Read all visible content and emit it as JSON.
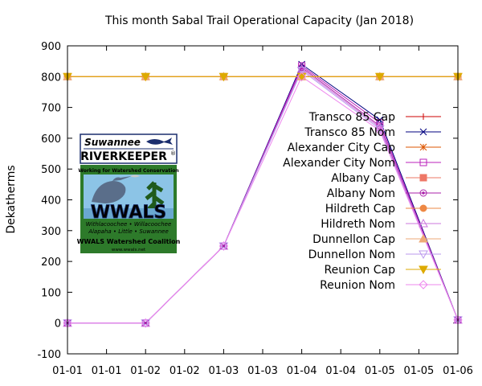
{
  "chart_data": {
    "type": "line",
    "title": "This month Sabal Trail Operational Capacity (Jan 2018)",
    "xlabel": "",
    "ylabel": "Dekatherms",
    "xlim": [
      0,
      5
    ],
    "ylim": [
      -100,
      900
    ],
    "y_ticks": [
      -100,
      0,
      100,
      200,
      300,
      400,
      500,
      600,
      700,
      800,
      900
    ],
    "x_ticks": [
      {
        "value": 0,
        "label": "01-01"
      },
      {
        "value": 0.5,
        "label": "01-01"
      },
      {
        "value": 1,
        "label": "01-02"
      },
      {
        "value": 1.5,
        "label": "01-02"
      },
      {
        "value": 2,
        "label": "01-03"
      },
      {
        "value": 2.5,
        "label": "01-03"
      },
      {
        "value": 3,
        "label": "01-04"
      },
      {
        "value": 3.5,
        "label": "01-04"
      },
      {
        "value": 4,
        "label": "01-05"
      },
      {
        "value": 4.5,
        "label": "01-05"
      },
      {
        "value": 5,
        "label": "01-06"
      }
    ],
    "grid": false,
    "legend_position": "right",
    "series": [
      {
        "name": "Transco 85 Cap",
        "color": "#cc0000",
        "marker": "plus",
        "x": [
          0,
          1,
          2,
          3,
          4,
          5
        ],
        "y": [
          800,
          800,
          800,
          800,
          800,
          800
        ]
      },
      {
        "name": "Transco 85 Nom",
        "color": "#00007f",
        "marker": "cross",
        "x": [
          0,
          1,
          2,
          3,
          4,
          5
        ],
        "y": [
          0,
          0,
          250,
          840,
          660,
          10
        ]
      },
      {
        "name": "Alexander City Cap",
        "color": "#dd5500",
        "marker": "asterisk",
        "x": [
          0,
          1,
          2,
          3,
          4,
          5
        ],
        "y": [
          800,
          800,
          800,
          800,
          800,
          800
        ]
      },
      {
        "name": "Alexander City Nom",
        "color": "#bb22bb",
        "marker": "square-open",
        "x": [
          0,
          1,
          2,
          3,
          4,
          5
        ],
        "y": [
          0,
          0,
          250,
          835,
          650,
          10
        ]
      },
      {
        "name": "Albany Cap",
        "color": "#ee7766",
        "marker": "square",
        "x": [
          0,
          1,
          2,
          3,
          4,
          5
        ],
        "y": [
          800,
          800,
          800,
          800,
          800,
          800
        ]
      },
      {
        "name": "Albany Nom",
        "color": "#aa22aa",
        "marker": "circle-dot",
        "x": [
          0,
          1,
          2,
          3,
          4,
          5
        ],
        "y": [
          0,
          0,
          250,
          830,
          640,
          10
        ]
      },
      {
        "name": "Hildreth Cap",
        "color": "#ee8844",
        "marker": "circle",
        "x": [
          0,
          1,
          2,
          3,
          4,
          5
        ],
        "y": [
          800,
          800,
          800,
          800,
          800,
          800
        ]
      },
      {
        "name": "Hildreth Nom",
        "color": "#cc77dd",
        "marker": "triangle-open",
        "x": [
          0,
          1,
          2,
          3,
          4,
          5
        ],
        "y": [
          0,
          0,
          250,
          825,
          635,
          10
        ]
      },
      {
        "name": "Dunnellon Cap",
        "color": "#eeaa77",
        "marker": "triangle",
        "x": [
          0,
          1,
          2,
          3,
          4,
          5
        ],
        "y": [
          800,
          800,
          800,
          800,
          800,
          800
        ]
      },
      {
        "name": "Dunnellon Nom",
        "color": "#bb99ee",
        "marker": "triangle-down-open",
        "x": [
          0,
          1,
          2,
          3,
          4,
          5
        ],
        "y": [
          0,
          0,
          250,
          820,
          630,
          10
        ]
      },
      {
        "name": "Reunion Cap",
        "color": "#ddaa00",
        "marker": "triangle-down",
        "x": [
          0,
          1,
          2,
          3,
          4,
          5
        ],
        "y": [
          800,
          800,
          800,
          800,
          800,
          800
        ]
      },
      {
        "name": "Reunion Nom",
        "color": "#ee88ee",
        "marker": "diamond-open",
        "x": [
          0,
          1,
          2,
          3,
          4,
          5
        ],
        "y": [
          0,
          0,
          250,
          800,
          625,
          10
        ]
      }
    ]
  },
  "logo": {
    "org_name": "Suwannee",
    "org_name_2": "RIVERKEEPER",
    "mark": "®",
    "tagline": "Working for Watershed Conservation",
    "wordmark": "WWALS",
    "rivers_line1": "Withlacoochee • Willacoochee",
    "rivers_line2": "Alapaha • Little • Suwannee",
    "coalition": "WWALS Watershed Coalition",
    "url": "www.wwals.net",
    "colors": {
      "navy": "#1b2e6e",
      "green": "#2d7a2a",
      "dark_green": "#1f5a1c",
      "sky": "#8cc4e6"
    }
  }
}
